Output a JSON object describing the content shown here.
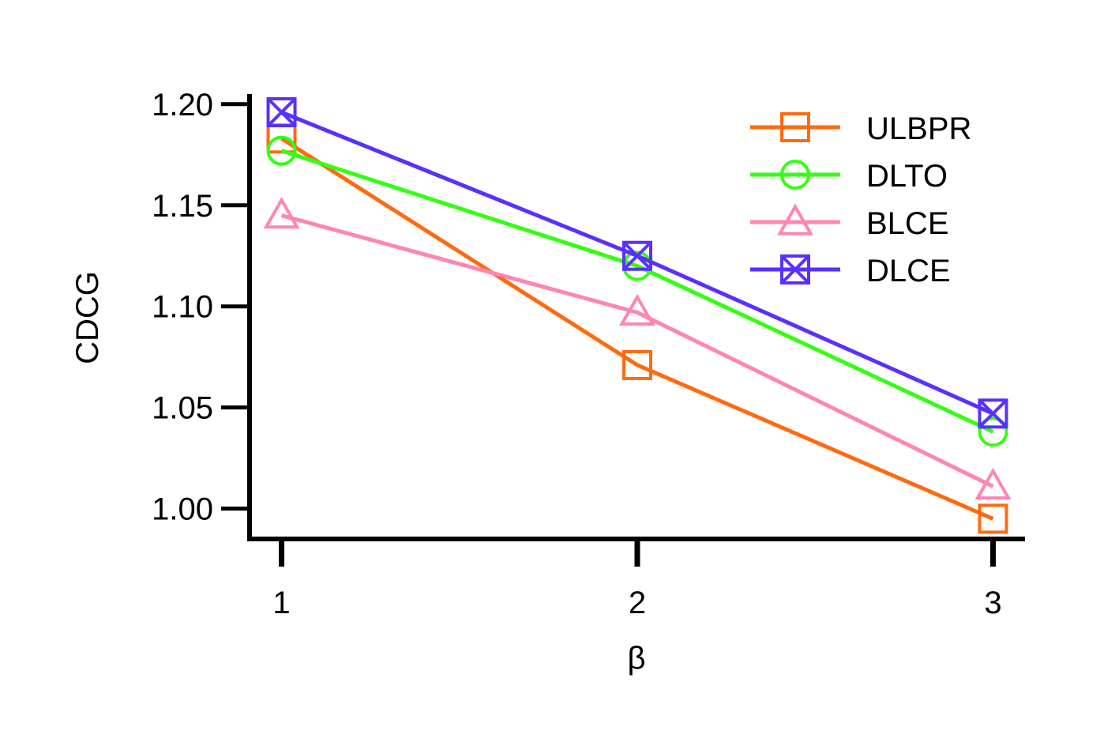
{
  "chart_data": {
    "type": "line",
    "title": "",
    "xlabel": "β",
    "ylabel": "CDCG",
    "x": [
      1,
      2,
      3
    ],
    "x_tick_labels": [
      "1",
      "2",
      "3"
    ],
    "y_ticks": [
      1.0,
      1.05,
      1.1,
      1.15,
      1.2
    ],
    "y_tick_labels": [
      "1.00",
      "1.05",
      "1.10",
      "1.15",
      "1.20"
    ],
    "xlim": [
      0.91,
      3.09
    ],
    "ylim": [
      0.985,
      1.205
    ],
    "grid": false,
    "legend_position": "top-right",
    "series": [
      {
        "name": "ULBPR",
        "values": [
          1.183,
          1.071,
          0.995
        ],
        "color": "#ff6a0f",
        "marker": "square"
      },
      {
        "name": "DLTO",
        "values": [
          1.177,
          1.12,
          1.038
        ],
        "color": "#33ff10",
        "marker": "circle"
      },
      {
        "name": "BLCE",
        "values": [
          1.145,
          1.097,
          1.011
        ],
        "color": "#ff85b3",
        "marker": "triangle"
      },
      {
        "name": "DLCE",
        "values": [
          1.196,
          1.125,
          1.047
        ],
        "color": "#5930ff",
        "marker": "square-x"
      }
    ]
  }
}
